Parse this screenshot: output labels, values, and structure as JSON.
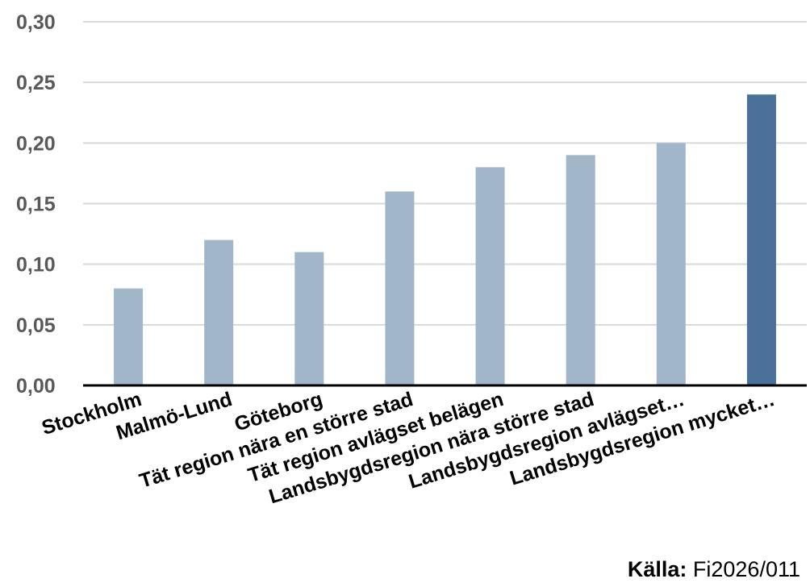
{
  "chart_data": {
    "type": "bar",
    "categories": [
      "Stockholm",
      "Malmö-Lund",
      "Göteborg",
      "Tät region nära en större stad",
      "Tät region avlägset belägen",
      "Landsbygdsregion nära större stad",
      "Landsbygdsregion avlägset…",
      "Landsbygdsregion mycket…"
    ],
    "values": [
      0.08,
      0.12,
      0.11,
      0.16,
      0.18,
      0.19,
      0.2,
      0.24
    ],
    "highlight_index": 7,
    "ylim": [
      0,
      0.3
    ],
    "yticks": [
      "0,00",
      "0,05",
      "0,10",
      "0,15",
      "0,20",
      "0,25",
      "0,30"
    ],
    "grid": true,
    "colors": {
      "bar": "#a1b6c9",
      "highlight": "#4a7199",
      "grid": "#d9d9d9",
      "axis": "#000000"
    }
  },
  "source": {
    "label": "Källa:",
    "text": "Fi2026/011"
  }
}
